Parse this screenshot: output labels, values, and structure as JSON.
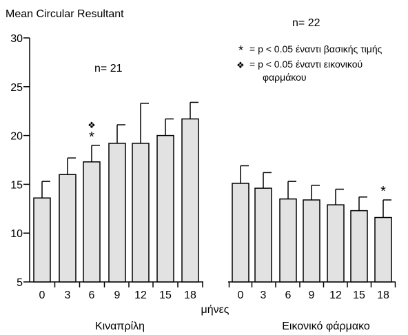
{
  "chart_data": {
    "type": "bar",
    "ylabel": "Mean Circular Resultant",
    "xlabel": "μήνες",
    "ylim": [
      5,
      30
    ],
    "yticks": [
      "5",
      "10",
      "15",
      "20",
      "25",
      "30"
    ],
    "groups": [
      {
        "name": "Κιναπρίλη",
        "n_label": "n= 21",
        "categories": [
          "0",
          "3",
          "6",
          "9",
          "12",
          "15",
          "18"
        ],
        "values": [
          13.6,
          16.0,
          17.3,
          19.2,
          19.2,
          20.0,
          21.7
        ],
        "errors": [
          1.7,
          1.7,
          1.7,
          1.9,
          4.1,
          1.7,
          1.7
        ],
        "markers": [
          {
            "index": 2,
            "symbols": [
              "❖",
              "*"
            ]
          }
        ]
      },
      {
        "name": "Εικονικό φάρμακο",
        "n_label": "n= 22",
        "categories": [
          "0",
          "3",
          "6",
          "9",
          "12",
          "15",
          "18"
        ],
        "values": [
          15.1,
          14.6,
          13.5,
          13.4,
          12.9,
          12.3,
          11.6
        ],
        "errors": [
          1.8,
          1.6,
          1.8,
          1.5,
          1.6,
          1.4,
          1.8
        ],
        "markers": [
          {
            "index": 6,
            "symbols": [
              "*"
            ]
          }
        ]
      }
    ],
    "legend": [
      {
        "symbol": "*",
        "text": "= p < 0.05 έναντι βασικής τιμής"
      },
      {
        "symbol": "❖",
        "text": "= p < 0.05 έναντι εικονικού",
        "text2": "φαρμάκου"
      }
    ],
    "bar_fill": "#e2e2e2",
    "bar_stroke": "#000000"
  }
}
